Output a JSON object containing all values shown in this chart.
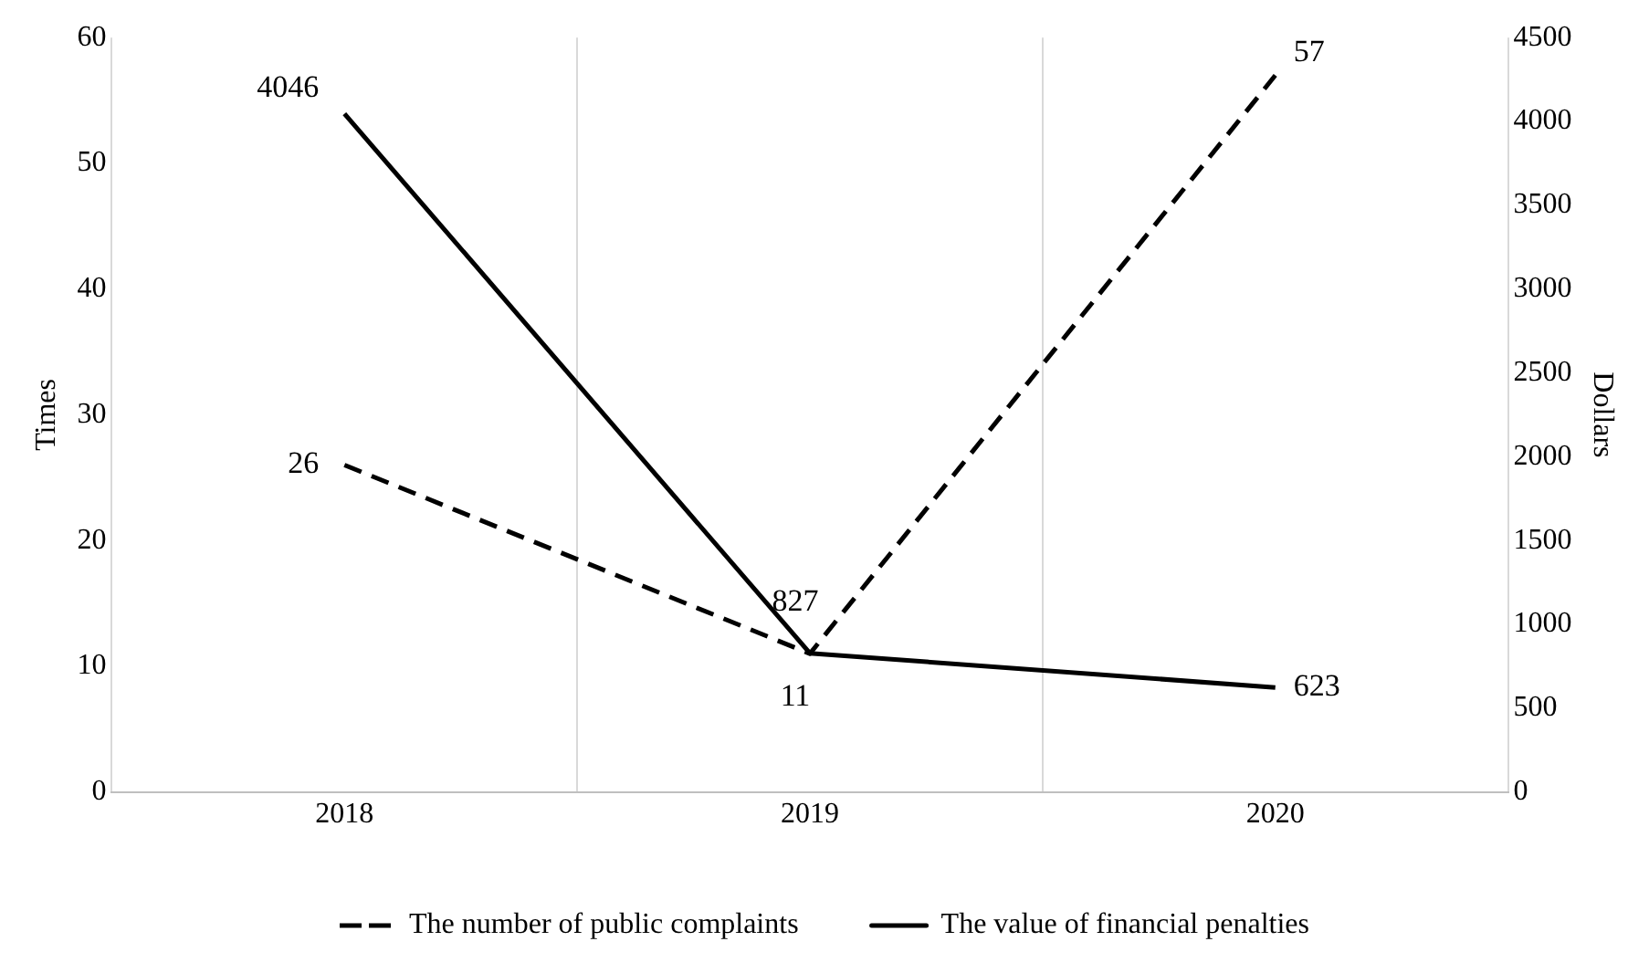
{
  "chart_data": {
    "type": "line",
    "categories": [
      "2018",
      "2019",
      "2020"
    ],
    "ylabel": "Times",
    "y2label": "Dollars",
    "ylim": [
      0,
      60
    ],
    "yticks": [
      0,
      10,
      20,
      30,
      40,
      50,
      60
    ],
    "y2lim": [
      0,
      4500
    ],
    "y2ticks": [
      0,
      500,
      1000,
      1500,
      2000,
      2500,
      3000,
      3500,
      4000,
      4500
    ],
    "series": [
      {
        "name": "The number of public complaints",
        "color": "#000000",
        "values": [
          26,
          11,
          57
        ],
        "line_style": "dashed"
      },
      {
        "name": "The value of financial penalties",
        "color": "#000000",
        "values": [
          4046,
          827,
          623
        ],
        "axis": "y2",
        "line_style": "solid"
      }
    ],
    "data_labels": true,
    "grid": "x",
    "legend": "bottom",
    "marker": "none"
  }
}
